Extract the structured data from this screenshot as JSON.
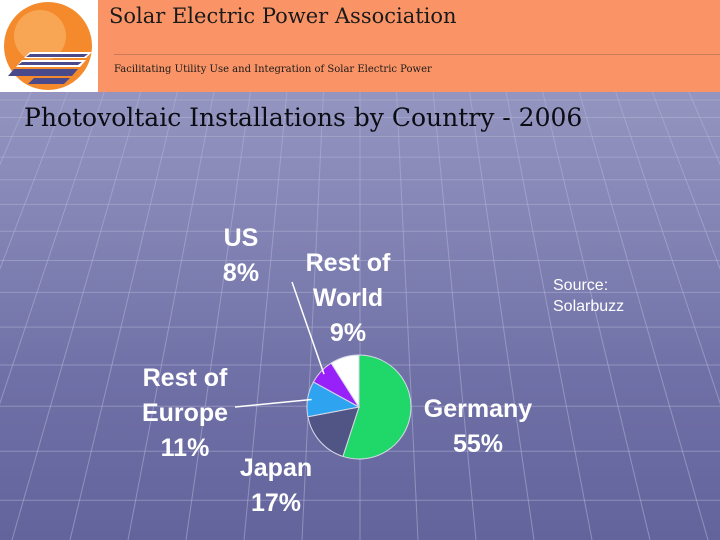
{
  "header": {
    "org_name": "Solar Electric Power Association",
    "tagline": "Facilitating Utility Use and Integration of Solar Electric Power",
    "header_color": "#fa9466"
  },
  "title": "Photovoltaic Installations by Country - 2006",
  "source": {
    "line1": "Source:",
    "line2": "Solarbuzz"
  },
  "chart_data": {
    "type": "pie",
    "title": "",
    "categories": [
      "Germany",
      "Japan",
      "Rest of Europe",
      "US",
      "Rest of World"
    ],
    "values": [
      55,
      17,
      11,
      8,
      9
    ],
    "colors": [
      "#20d86a",
      "#505586",
      "#2ea4f0",
      "#9820f8",
      "#ffffff"
    ],
    "labels": [
      {
        "lines": [
          "Germany",
          "55%"
        ]
      },
      {
        "lines": [
          "Japan",
          "17%"
        ]
      },
      {
        "lines": [
          "Rest of",
          "Europe",
          "11%"
        ]
      },
      {
        "lines": [
          "US",
          "8%"
        ]
      },
      {
        "lines": [
          "Rest of",
          "World",
          "9%"
        ]
      }
    ],
    "start_angle_deg": 0,
    "direction": "clockwise"
  }
}
